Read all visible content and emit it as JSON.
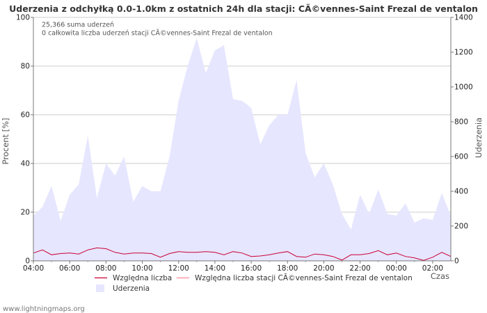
{
  "chart_data": {
    "type": "area",
    "title": "Uderzenia z odchyłką 0.0-1.0km z ostatnich 24h dla stacji: CÃ©vennes-Saint Frezal de ventalon",
    "xlabel": "Czas",
    "ylabel_left": "Procent   [%]",
    "ylabel_right": "Uderzenia",
    "ylim_left": [
      0,
      100
    ],
    "ylim_right": [
      0,
      1400
    ],
    "xlim_hours": [
      4,
      27
    ],
    "yticks_left": [
      0,
      20,
      40,
      60,
      80,
      100
    ],
    "yticks_right": [
      0,
      200,
      400,
      600,
      800,
      1000,
      1200,
      1400
    ],
    "xticks": [
      {
        "h": 4,
        "label": "04:00"
      },
      {
        "h": 6,
        "label": "06:00"
      },
      {
        "h": 8,
        "label": "08:00"
      },
      {
        "h": 10,
        "label": "10:00"
      },
      {
        "h": 12,
        "label": "12:00"
      },
      {
        "h": 14,
        "label": "14:00"
      },
      {
        "h": 16,
        "label": "16:00"
      },
      {
        "h": 18,
        "label": "18:00"
      },
      {
        "h": 20,
        "label": "20:00"
      },
      {
        "h": 22,
        "label": "22:00"
      },
      {
        "h": 24,
        "label": "00:00"
      },
      {
        "h": 26,
        "label": "02:00"
      }
    ],
    "grid": true,
    "annotations": [
      "25,366 suma uderzeń",
      "0 całkowita liczba uderzeń stacji CÃ©vennes-Saint Frezal de ventalon"
    ],
    "x_hours": [
      4.0,
      4.5,
      5.0,
      5.5,
      6.0,
      6.5,
      7.0,
      7.5,
      8.0,
      8.5,
      9.0,
      9.5,
      10.0,
      10.5,
      11.0,
      11.5,
      12.0,
      12.5,
      13.0,
      13.5,
      14.0,
      14.5,
      15.0,
      15.5,
      16.0,
      16.5,
      17.0,
      17.5,
      18.0,
      18.5,
      19.0,
      19.5,
      20.0,
      20.5,
      21.0,
      21.5,
      22.0,
      22.5,
      23.0,
      23.5,
      24.0,
      24.5,
      25.0,
      25.5,
      26.0,
      26.5,
      27.0
    ],
    "series": [
      {
        "name": "Względna liczba",
        "axis": "left",
        "color": "#cc0033",
        "values": [
          3.2,
          4.5,
          2.5,
          3.0,
          3.2,
          2.8,
          4.5,
          5.3,
          5.0,
          3.5,
          2.8,
          3.2,
          3.2,
          3.0,
          1.5,
          3.0,
          3.8,
          3.5,
          3.5,
          3.8,
          3.5,
          2.5,
          3.8,
          3.2,
          1.8,
          2.0,
          2.5,
          3.2,
          3.8,
          1.8,
          1.5,
          2.8,
          2.5,
          1.8,
          0.3,
          2.5,
          2.5,
          3.0,
          4.2,
          2.5,
          3.2,
          1.8,
          1.2,
          0.2,
          1.5,
          3.5,
          1.8
        ]
      },
      {
        "name": "Względna liczba stacji CÃ©vennes-Saint Frezal de ventalon",
        "axis": "left",
        "color": "#ff8899",
        "values": [
          0,
          0,
          0,
          0,
          0,
          0,
          0,
          0,
          0,
          0,
          0,
          0,
          0,
          0,
          0,
          0,
          0,
          0,
          0,
          0,
          0,
          0,
          0,
          0,
          0,
          0,
          0,
          0,
          0,
          0,
          0,
          0,
          0,
          0,
          0,
          0,
          0,
          0,
          0,
          0,
          0,
          0,
          0,
          0,
          0,
          0,
          0
        ]
      },
      {
        "name": "Uderzenia",
        "axis": "right",
        "color": "#e6e6ff",
        "values": [
          260,
          310,
          430,
          230,
          380,
          440,
          720,
          360,
          560,
          490,
          600,
          340,
          430,
          400,
          400,
          600,
          920,
          1120,
          1280,
          1080,
          1210,
          1240,
          930,
          920,
          880,
          670,
          780,
          840,
          840,
          1040,
          620,
          480,
          560,
          440,
          270,
          180,
          380,
          270,
          410,
          270,
          260,
          330,
          220,
          245,
          235,
          390,
          260
        ]
      }
    ],
    "legend": [
      {
        "label": "Względna liczba",
        "kind": "line",
        "color": "#cc0033"
      },
      {
        "label": "Względna liczba stacji CÃ©vennes-Saint Frezal de ventalon",
        "kind": "line",
        "color": "#ff8899"
      },
      {
        "label": "Uderzenia",
        "kind": "area",
        "color": "#e6e6ff"
      }
    ],
    "legend_position": "bottom-left"
  },
  "footer": "www.lightningmaps.org"
}
